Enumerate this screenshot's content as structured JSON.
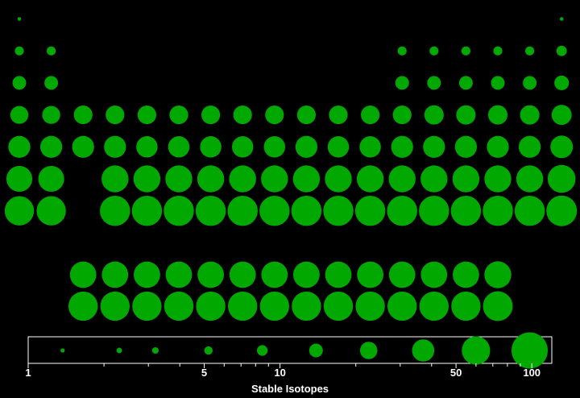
{
  "colors": {
    "background": "#000000",
    "mark": "#00a800",
    "legend_frame": "#ffffff",
    "text": "#ffffff"
  },
  "chart_data": {
    "type": "scatter",
    "title": "",
    "encoding": "periodic-table grid; circle area proportional to value",
    "main_rows": [
      [
        1,
        null,
        null,
        null,
        null,
        null,
        null,
        null,
        null,
        null,
        null,
        null,
        null,
        null,
        null,
        null,
        null,
        1
      ],
      [
        6,
        6,
        null,
        null,
        null,
        null,
        null,
        null,
        null,
        null,
        null,
        null,
        6,
        6,
        6,
        6,
        6,
        8
      ],
      [
        14,
        14,
        null,
        null,
        null,
        null,
        null,
        null,
        null,
        null,
        null,
        null,
        14,
        14,
        14,
        14,
        14,
        16
      ],
      [
        24,
        24,
        26,
        26,
        26,
        26,
        26,
        26,
        26,
        26,
        26,
        26,
        26,
        28,
        28,
        28,
        28,
        30
      ],
      [
        36,
        36,
        36,
        36,
        34,
        34,
        34,
        34,
        34,
        36,
        34,
        34,
        36,
        36,
        36,
        36,
        36,
        38
      ],
      [
        50,
        50,
        null,
        54,
        54,
        54,
        54,
        54,
        54,
        54,
        54,
        54,
        54,
        54,
        54,
        54,
        54,
        58
      ],
      [
        64,
        64,
        null,
        68,
        68,
        68,
        68,
        68,
        68,
        68,
        68,
        68,
        68,
        68,
        68,
        68,
        68,
        70
      ]
    ],
    "f_block_rows": [
      [
        52,
        52,
        52,
        52,
        52,
        52,
        52,
        52,
        52,
        52,
        52,
        52,
        52,
        54
      ],
      [
        64,
        64,
        64,
        64,
        64,
        64,
        64,
        64,
        64,
        64,
        64,
        64,
        64,
        66
      ]
    ],
    "legend": {
      "title": "Stable Isotopes",
      "scale": "log",
      "range": [
        1,
        120
      ],
      "sample_values": [
        1.37,
        2.3,
        3.2,
        5.2,
        8.5,
        13.9,
        22.5,
        37,
        60,
        98
      ],
      "tick_values": [
        1,
        2,
        3,
        4,
        5,
        6,
        7,
        8,
        9,
        10,
        20,
        30,
        40,
        50,
        60,
        70,
        80,
        90,
        100
      ],
      "tick_labels": [
        "1",
        "5",
        "10",
        "50",
        "100"
      ],
      "tick_label_values": [
        1,
        5,
        10,
        50,
        100
      ]
    }
  }
}
